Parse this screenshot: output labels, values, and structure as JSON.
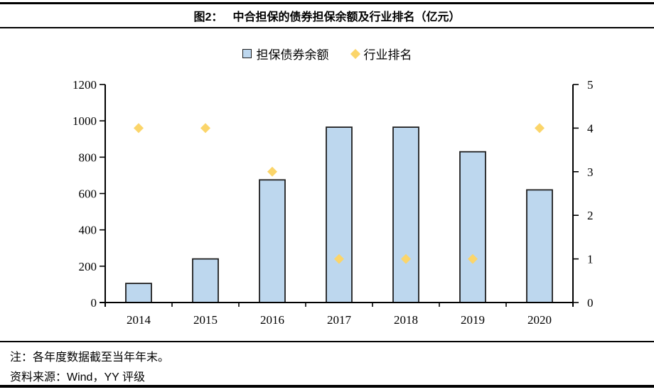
{
  "figure": {
    "label": "图2：",
    "title": "中合担保的债券担保余额及行业排名（亿元）"
  },
  "legend": [
    {
      "label": "担保债券余额",
      "marker": "square-icon"
    },
    {
      "label": "行业排名",
      "marker": "diamond-icon"
    }
  ],
  "chart_data": {
    "type": "bar",
    "title": "中合担保的债券担保余额及行业排名（亿元）",
    "categories": [
      "2014",
      "2015",
      "2016",
      "2017",
      "2018",
      "2019",
      "2020"
    ],
    "series": [
      {
        "name": "担保债券余额",
        "type": "bar",
        "axis": "left",
        "values": [
          105,
          240,
          675,
          965,
          965,
          830,
          620
        ]
      },
      {
        "name": "行业排名",
        "type": "scatter",
        "axis": "right",
        "values": [
          4,
          4,
          3,
          1,
          1,
          1,
          4
        ]
      }
    ],
    "left_axis": {
      "min": 0,
      "max": 1200,
      "step": 200,
      "ticks": [
        "0",
        "200",
        "400",
        "600",
        "800",
        "1000",
        "1200"
      ]
    },
    "right_axis": {
      "min": 0,
      "max": 5,
      "step": 1,
      "ticks": [
        "0",
        "1",
        "2",
        "3",
        "4",
        "5"
      ]
    },
    "grid": false,
    "legend_position": "top"
  },
  "notes": {
    "note": "注：各年度数据截至当年年末。",
    "source": "资料来源：Wind，YY 评级"
  },
  "colors": {
    "bar_fill": "#BDD7EE",
    "bar_border": "#1F1F1F",
    "diamond": "#FBD56A",
    "axis": "#000000"
  }
}
